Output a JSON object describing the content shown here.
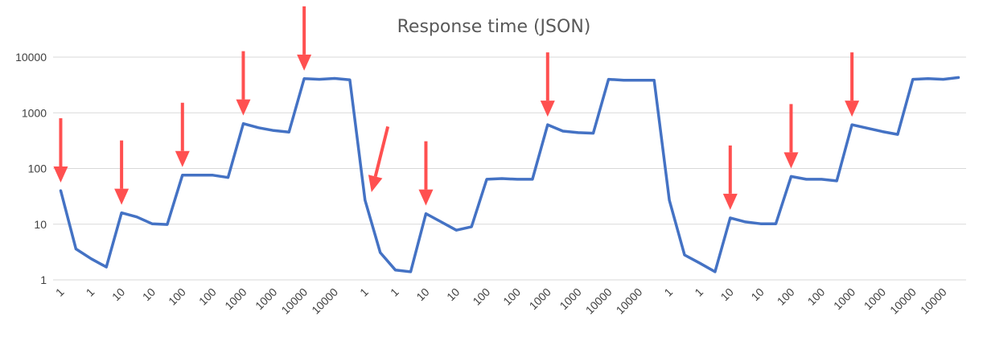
{
  "chart_data": {
    "type": "line",
    "title": "Response time (JSON)",
    "xlabel": "",
    "ylabel": "",
    "yscale": "log",
    "ylim": [
      1,
      10000
    ],
    "yticks": [
      1,
      10,
      100,
      1000,
      10000
    ],
    "ytick_labels": [
      "1",
      "10",
      "100",
      "1000",
      "10000"
    ],
    "grid": true,
    "legend": "none",
    "categories": [
      "1",
      "",
      "1",
      "",
      "10",
      "",
      "10",
      "",
      "100",
      "",
      "100",
      "",
      "1000",
      "",
      "1000",
      "",
      "10000",
      "",
      "10000",
      "",
      "1",
      "",
      "1",
      "",
      "10",
      "",
      "10",
      "",
      "100",
      "",
      "100",
      "",
      "1000",
      "",
      "1000",
      "",
      "10000",
      "",
      "10000",
      "",
      "1",
      "",
      "1",
      "",
      "10",
      "",
      "10",
      "",
      "100",
      "",
      "100",
      "",
      "1000",
      "",
      "1000",
      "",
      "10000",
      "",
      "10000",
      ""
    ],
    "series": [
      {
        "name": "",
        "color": "#4472c4",
        "values": [
          40,
          3.6,
          2.4,
          1.7,
          16,
          13.5,
          10.2,
          9.9,
          76,
          76,
          76,
          69,
          640,
          540,
          480,
          450,
          4100,
          4000,
          4150,
          3900,
          27,
          3.1,
          1.5,
          1.4,
          15.5,
          11,
          7.8,
          9,
          64,
          66,
          64,
          64,
          610,
          470,
          440,
          430,
          4000,
          3850,
          3850,
          3850,
          27,
          2.8,
          2.0,
          1.4,
          13,
          11,
          10.2,
          10.2,
          72,
          64,
          64,
          60,
          610,
          530,
          460,
          410,
          4000,
          4100,
          4000,
          4300
        ]
      }
    ],
    "annotations": [
      {
        "type": "arrow",
        "color": "#ff5050",
        "target_index": 0,
        "direction": "down"
      },
      {
        "type": "arrow",
        "color": "#ff5050",
        "target_index": 4,
        "direction": "down"
      },
      {
        "type": "arrow",
        "color": "#ff5050",
        "target_index": 8,
        "direction": "down"
      },
      {
        "type": "arrow",
        "color": "#ff5050",
        "target_index": 12,
        "direction": "down"
      },
      {
        "type": "arrow",
        "color": "#ff5050",
        "target_index": 16,
        "direction": "down"
      },
      {
        "type": "arrow",
        "color": "#ff5050",
        "target_index": 20,
        "direction": "diagonal"
      },
      {
        "type": "arrow",
        "color": "#ff5050",
        "target_index": 24,
        "direction": "down"
      },
      {
        "type": "arrow",
        "color": "#ff5050",
        "target_index": 32,
        "direction": "down"
      },
      {
        "type": "arrow",
        "color": "#ff5050",
        "target_index": 44,
        "direction": "down"
      },
      {
        "type": "arrow",
        "color": "#ff5050",
        "target_index": 48,
        "direction": "down"
      },
      {
        "type": "arrow",
        "color": "#ff5050",
        "target_index": 52,
        "direction": "down"
      }
    ]
  }
}
